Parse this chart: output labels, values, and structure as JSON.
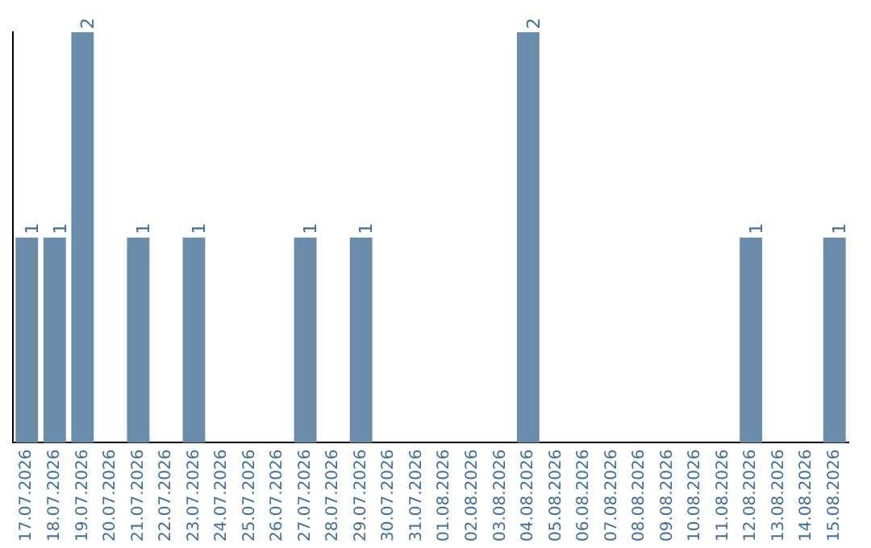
{
  "chart_data": {
    "type": "bar",
    "categories": [
      "17.07.2026",
      "18.07.2026",
      "19.07.2026",
      "20.07.2026",
      "21.07.2026",
      "22.07.2026",
      "23.07.2026",
      "24.07.2026",
      "25.07.2026",
      "26.07.2026",
      "27.07.2026",
      "28.07.2026",
      "29.07.2026",
      "30.07.2026",
      "31.07.2026",
      "01.08.2026",
      "02.08.2026",
      "03.08.2026",
      "04.08.2026",
      "05.08.2026",
      "06.08.2026",
      "07.08.2026",
      "08.08.2026",
      "09.08.2026",
      "10.08.2026",
      "11.08.2026",
      "12.08.2026",
      "13.08.2026",
      "14.08.2026",
      "15.08.2026"
    ],
    "values": [
      1,
      1,
      2,
      0,
      1,
      0,
      1,
      0,
      0,
      0,
      1,
      0,
      1,
      0,
      0,
      0,
      0,
      0,
      2,
      0,
      0,
      0,
      0,
      0,
      0,
      0,
      1,
      0,
      0,
      1
    ],
    "value_labels": [
      "1",
      "1",
      "2",
      null,
      "1",
      null,
      "1",
      null,
      null,
      null,
      "1",
      null,
      "1",
      null,
      null,
      null,
      null,
      null,
      "2",
      null,
      null,
      null,
      null,
      null,
      null,
      null,
      "1",
      null,
      null,
      "1"
    ],
    "color": "#6a8cab",
    "tick_labels": "x",
    "grid": false,
    "legend": false
  }
}
